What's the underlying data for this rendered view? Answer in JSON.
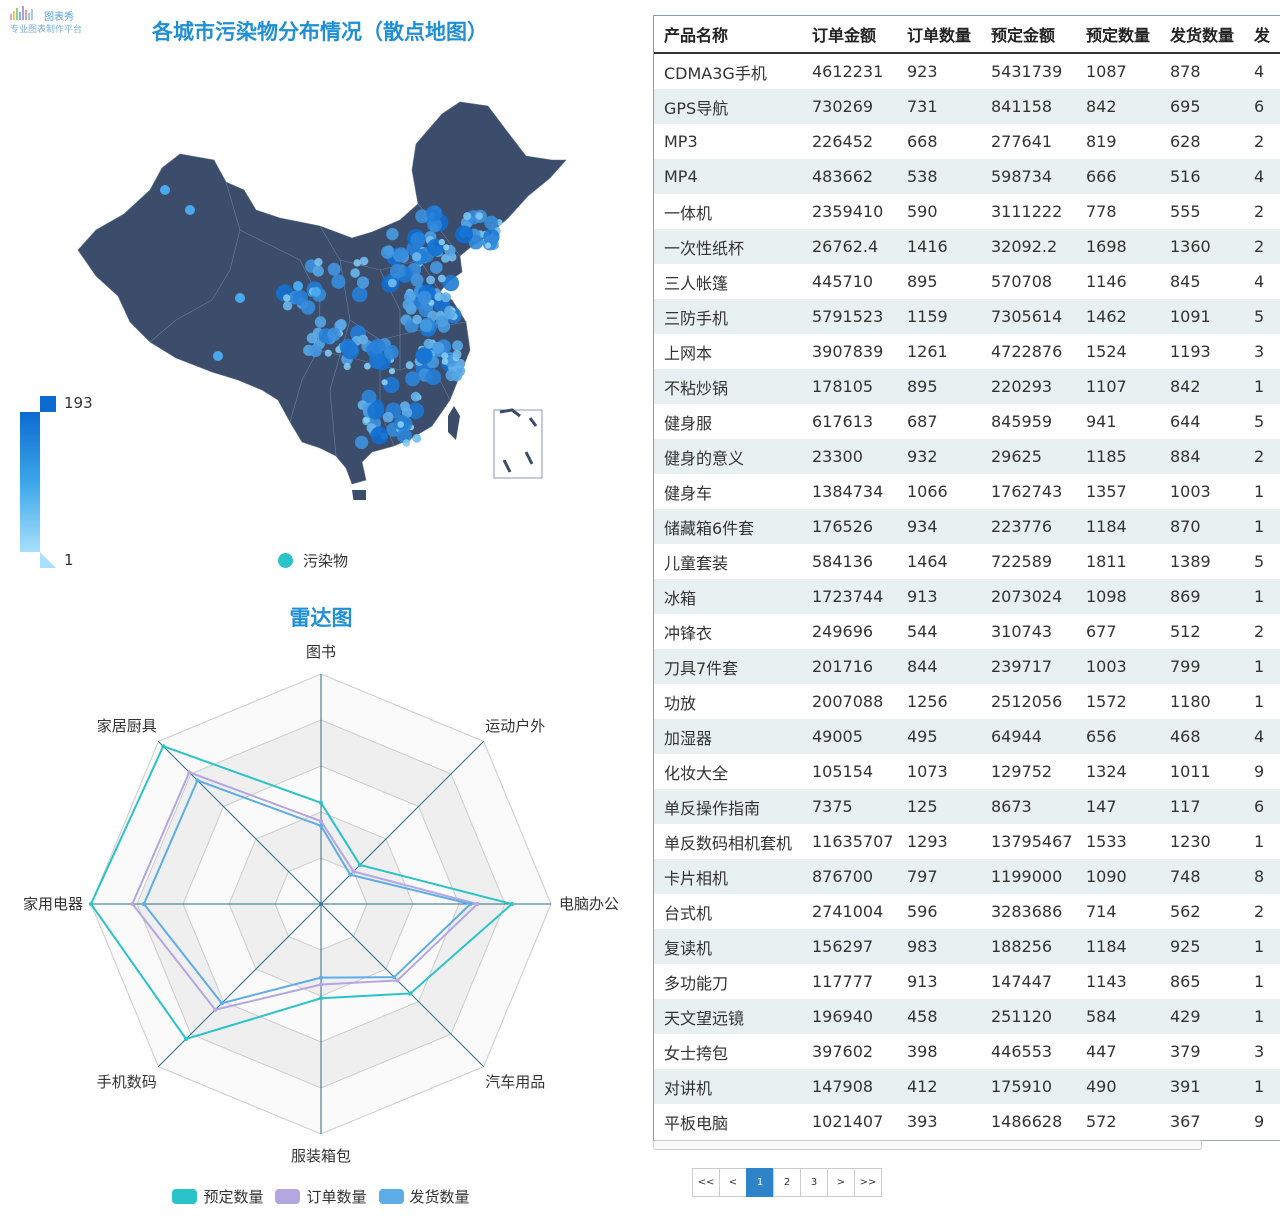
{
  "logo": {
    "name": "图表秀",
    "tagline": "专业图表制作平台"
  },
  "map": {
    "title": "各城市污染物分布情况（散点地图）",
    "visual_map": {
      "max": 193,
      "min": 1
    },
    "legend": {
      "label": "污染物"
    },
    "colors": {
      "land": "#3b4d6b",
      "scatter_low": "#8fd5f8",
      "scatter_high": "#0d6bd0",
      "legend_dot": "#2ac3c9"
    }
  },
  "chart_data": [
    {
      "type": "radar",
      "title": "雷达图",
      "indicators": [
        "图书",
        "运动户外",
        "电脑办公",
        "汽车用品",
        "服装箱包",
        "手机数码",
        "家用电器",
        "家居厨具"
      ],
      "range": [
        0,
        1
      ],
      "series": [
        {
          "name": "预定数量",
          "color": "#2ac3c9",
          "values": [
            0.44,
            0.24,
            0.83,
            0.55,
            0.41,
            0.83,
            1.0,
            0.97
          ]
        },
        {
          "name": "订单数量",
          "color": "#b4a6e0",
          "values": [
            0.36,
            0.2,
            0.68,
            0.47,
            0.35,
            0.65,
            0.82,
            0.81
          ]
        },
        {
          "name": "发货数量",
          "color": "#5dade8",
          "values": [
            0.34,
            0.18,
            0.65,
            0.45,
            0.32,
            0.61,
            0.77,
            0.76
          ]
        }
      ]
    },
    {
      "type": "table",
      "columns": [
        "产品名称",
        "订单金额",
        "订单数量",
        "预定金额",
        "预定数量",
        "发货数量",
        "发"
      ],
      "rows": [
        [
          "CDMA3G手机",
          "4612231",
          "923",
          "5431739",
          "1087",
          "878",
          "4"
        ],
        [
          "GPS导航",
          "730269",
          "731",
          "841158",
          "842",
          "695",
          "6"
        ],
        [
          "MP3",
          "226452",
          "668",
          "277641",
          "819",
          "628",
          "2"
        ],
        [
          "MP4",
          "483662",
          "538",
          "598734",
          "666",
          "516",
          "4"
        ],
        [
          "一体机",
          "2359410",
          "590",
          "3111222",
          "778",
          "555",
          "2"
        ],
        [
          "一次性纸杯",
          "26762.4",
          "1416",
          "32092.2",
          "1698",
          "1360",
          "2"
        ],
        [
          "三人帐篷",
          "445710",
          "895",
          "570708",
          "1146",
          "845",
          "4"
        ],
        [
          "三防手机",
          "5791523",
          "1159",
          "7305614",
          "1462",
          "1091",
          "5"
        ],
        [
          "上网本",
          "3907839",
          "1261",
          "4722876",
          "1524",
          "1193",
          "3"
        ],
        [
          "不粘炒锅",
          "178105",
          "895",
          "220293",
          "1107",
          "842",
          "1"
        ],
        [
          "健身服",
          "617613",
          "687",
          "845959",
          "941",
          "644",
          "5"
        ],
        [
          "健身的意义",
          "23300",
          "932",
          "29625",
          "1185",
          "884",
          "2"
        ],
        [
          "健身车",
          "1384734",
          "1066",
          "1762743",
          "1357",
          "1003",
          "1"
        ],
        [
          "储藏箱6件套",
          "176526",
          "934",
          "223776",
          "1184",
          "870",
          "1"
        ],
        [
          "儿童套装",
          "584136",
          "1464",
          "722589",
          "1811",
          "1389",
          "5"
        ],
        [
          "冰箱",
          "1723744",
          "913",
          "2073024",
          "1098",
          "869",
          "1"
        ],
        [
          "冲锋衣",
          "249696",
          "544",
          "310743",
          "677",
          "512",
          "2"
        ],
        [
          "刀具7件套",
          "201716",
          "844",
          "239717",
          "1003",
          "799",
          "1"
        ],
        [
          "功放",
          "2007088",
          "1256",
          "2512056",
          "1572",
          "1180",
          "1"
        ],
        [
          "加湿器",
          "49005",
          "495",
          "64944",
          "656",
          "468",
          "4"
        ],
        [
          "化妆大全",
          "105154",
          "1073",
          "129752",
          "1324",
          "1011",
          "9"
        ],
        [
          "单反操作指南",
          "7375",
          "125",
          "8673",
          "147",
          "117",
          "6"
        ],
        [
          "单反数码相机套机",
          "11635707",
          "1293",
          "13795467",
          "1533",
          "1230",
          "1"
        ],
        [
          "卡片相机",
          "876700",
          "797",
          "1199000",
          "1090",
          "748",
          "8"
        ],
        [
          "台式机",
          "2741004",
          "596",
          "3283686",
          "714",
          "562",
          "2"
        ],
        [
          "复读机",
          "156297",
          "983",
          "188256",
          "1184",
          "925",
          "1"
        ],
        [
          "多功能刀",
          "117777",
          "913",
          "147447",
          "1143",
          "865",
          "1"
        ],
        [
          "天文望远镜",
          "196940",
          "458",
          "251120",
          "584",
          "429",
          "1"
        ],
        [
          "女士挎包",
          "397602",
          "398",
          "446553",
          "447",
          "379",
          "3"
        ],
        [
          "对讲机",
          "147908",
          "412",
          "175910",
          "490",
          "391",
          "1"
        ],
        [
          "平板电脑",
          "1021407",
          "393",
          "1486628",
          "572",
          "367",
          "9"
        ]
      ]
    }
  ],
  "pagination": {
    "first": "<<",
    "prev": "<",
    "pages": [
      "1",
      "2",
      "3"
    ],
    "current": "1",
    "next": ">",
    "last": ">>"
  }
}
